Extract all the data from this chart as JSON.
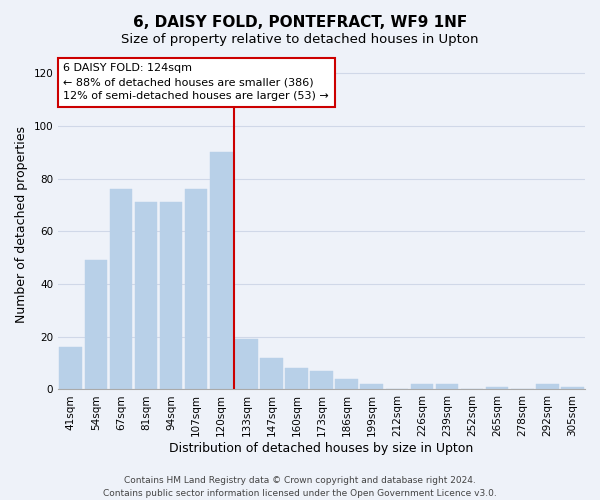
{
  "title": "6, DAISY FOLD, PONTEFRACT, WF9 1NF",
  "subtitle": "Size of property relative to detached houses in Upton",
  "xlabel": "Distribution of detached houses by size in Upton",
  "ylabel": "Number of detached properties",
  "bar_labels": [
    "41sqm",
    "54sqm",
    "67sqm",
    "81sqm",
    "94sqm",
    "107sqm",
    "120sqm",
    "133sqm",
    "147sqm",
    "160sqm",
    "173sqm",
    "186sqm",
    "199sqm",
    "212sqm",
    "226sqm",
    "239sqm",
    "252sqm",
    "265sqm",
    "278sqm",
    "292sqm",
    "305sqm"
  ],
  "bar_values": [
    16,
    49,
    76,
    71,
    71,
    76,
    90,
    19,
    12,
    8,
    7,
    4,
    2,
    0,
    2,
    2,
    0,
    1,
    0,
    2,
    1
  ],
  "bar_color": "#b8d0e8",
  "bar_edge_color": "#b8d0e8",
  "vline_color": "#cc0000",
  "annotation_title": "6 DAISY FOLD: 124sqm",
  "annotation_line1": "← 88% of detached houses are smaller (386)",
  "annotation_line2": "12% of semi-detached houses are larger (53) →",
  "annotation_box_edgecolor": "#cc0000",
  "annotation_box_facecolor": "#ffffff",
  "ylim": [
    0,
    125
  ],
  "yticks": [
    0,
    20,
    40,
    60,
    80,
    100,
    120
  ],
  "footer1": "Contains HM Land Registry data © Crown copyright and database right 2024.",
  "footer2": "Contains public sector information licensed under the Open Government Licence v3.0.",
  "background_color": "#eef2f9",
  "grid_color": "#d0d8e8",
  "title_fontsize": 11,
  "subtitle_fontsize": 9.5,
  "axis_label_fontsize": 9,
  "tick_fontsize": 7.5,
  "annotation_fontsize": 8,
  "footer_fontsize": 6.5
}
